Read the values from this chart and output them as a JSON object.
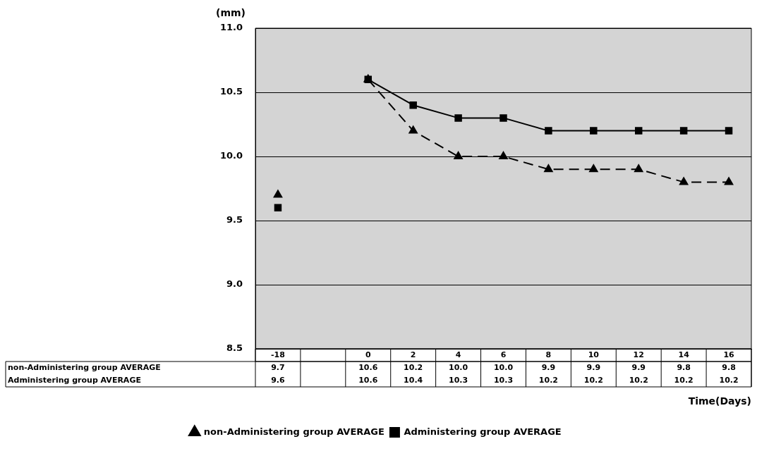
{
  "chart_data": {
    "type": "line",
    "ylabel": "(mm)",
    "xlabel": "Time(Days)",
    "categories": [
      "-18",
      null,
      "0",
      "2",
      "4",
      "6",
      "8",
      "10",
      "12",
      "14",
      "16"
    ],
    "series": [
      {
        "name": "non-Administering group AVERAGE",
        "color": "#000000",
        "marker": "triangle",
        "line_style": "dashed",
        "values": [
          9.7,
          null,
          10.6,
          10.2,
          10.0,
          10.0,
          9.9,
          9.9,
          9.9,
          9.8,
          9.8
        ],
        "value_labels": [
          "9.7",
          null,
          "10.6",
          "10.2",
          "10.0",
          "10.0",
          "9.9",
          "9.9",
          "9.9",
          "9.8",
          "9.8"
        ]
      },
      {
        "name": "Administering group AVERAGE",
        "color": "#000000",
        "marker": "square",
        "line_style": "solid",
        "values": [
          9.6,
          null,
          10.6,
          10.4,
          10.3,
          10.3,
          10.2,
          10.2,
          10.2,
          10.2,
          10.2
        ],
        "value_labels": [
          "9.6",
          null,
          "10.6",
          "10.4",
          "10.3",
          "10.3",
          "10.2",
          "10.2",
          "10.2",
          "10.2",
          "10.2"
        ]
      }
    ],
    "ylim": [
      8.5,
      11.0
    ],
    "yticks": [
      {
        "value": 8.5,
        "label": "8.5"
      },
      {
        "value": 9.0,
        "label": "9.0"
      },
      {
        "value": 9.5,
        "label": "9.5"
      },
      {
        "value": 10.0,
        "label": "10.0"
      },
      {
        "value": 10.5,
        "label": "10.5"
      },
      {
        "value": 11.0,
        "label": "11.0"
      }
    ],
    "grid": "y",
    "legend": "bottom"
  }
}
